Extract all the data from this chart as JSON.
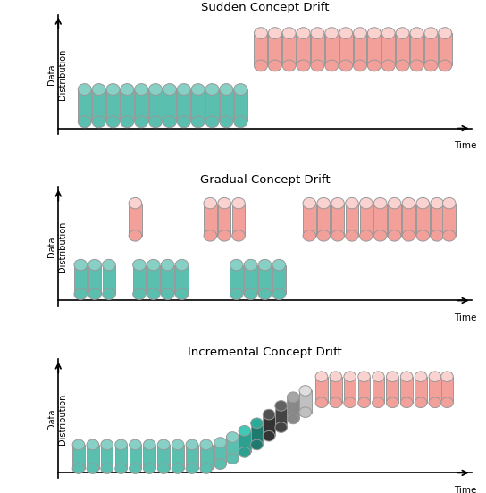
{
  "title1": "Sudden Concept Drift",
  "title2": "Gradual Concept Drift",
  "title3": "Incremental Concept Drift",
  "color_teal": "#5BBFB0",
  "color_pink": "#F4A09A",
  "color_dark_teal": "#1E7A6E",
  "color_dark_gray": "#444444",
  "color_mid_gray": "#888888",
  "color_light_gray": "#C0C0C0",
  "color_edge": "#999999",
  "ylabel": "Data\nDistribution",
  "xlabel": "Time",
  "bg_color": "#FFFFFF"
}
